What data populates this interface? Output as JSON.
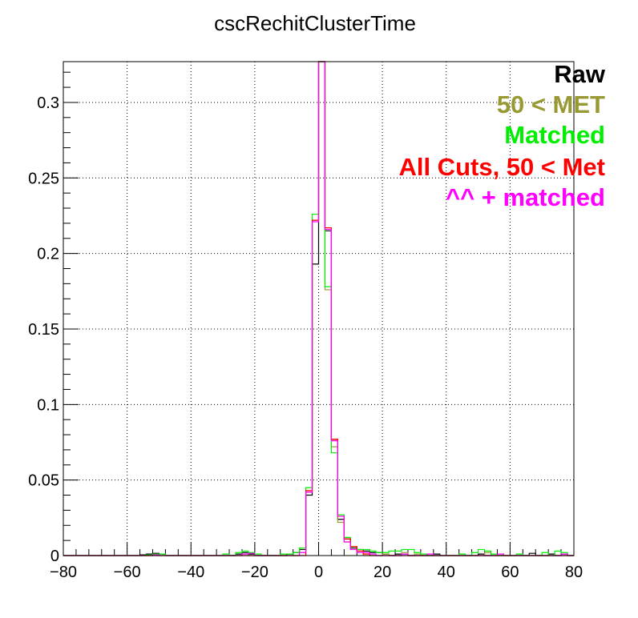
{
  "chart_data": {
    "type": "histogram",
    "title": "cscRechitClusterTime",
    "xlabel": "",
    "ylabel": "",
    "xlim": [
      -80,
      80
    ],
    "ylim": [
      0,
      0.327
    ],
    "bin_width": 2,
    "x_ticks": [
      -80,
      -60,
      -40,
      -20,
      0,
      20,
      40,
      60,
      80
    ],
    "x_tick_labels": [
      "−80",
      "−60",
      "−40",
      "−20",
      "0",
      "20",
      "40",
      "60",
      "80"
    ],
    "y_ticks": [
      0,
      0.05,
      0.1,
      0.15,
      0.2,
      0.25,
      0.3
    ],
    "y_tick_labels": [
      "0",
      "0.05",
      "0.1",
      "0.15",
      "0.2",
      "0.25",
      "0.3"
    ],
    "grid": true,
    "legend_position": "top-right",
    "series": [
      {
        "name": "Raw",
        "color": "#000000",
        "bins": [
          [
            -56,
            0.0005
          ],
          [
            -54,
            0.001
          ],
          [
            -52,
            0.0015
          ],
          [
            -50,
            0.001
          ],
          [
            -26,
            0.001
          ],
          [
            -24,
            0.002
          ],
          [
            -22,
            0.001
          ],
          [
            -10,
            0.001
          ],
          [
            -8,
            0.002
          ],
          [
            -6,
            0.004
          ],
          [
            -4,
            0.04
          ],
          [
            -2,
            0.193
          ],
          [
            0,
            0.33
          ],
          [
            2,
            0.215
          ],
          [
            4,
            0.077
          ],
          [
            6,
            0.024
          ],
          [
            8,
            0.011
          ],
          [
            10,
            0.005
          ],
          [
            12,
            0.004
          ],
          [
            14,
            0.003
          ],
          [
            16,
            0.002
          ],
          [
            18,
            0.002
          ],
          [
            20,
            0.001
          ],
          [
            24,
            0.001
          ],
          [
            26,
            0.001
          ],
          [
            36,
            0.001
          ],
          [
            50,
            0.001
          ],
          [
            66,
            0.0015
          ],
          [
            72,
            0.001
          ],
          [
            76,
            0.001
          ]
        ]
      },
      {
        "name": "50 < MET",
        "color": "#999933",
        "bins": [
          [
            -52,
            0.0005
          ],
          [
            -24,
            0.001
          ],
          [
            -6,
            0.002
          ],
          [
            -4,
            0.042
          ],
          [
            -2,
            0.222
          ],
          [
            0,
            0.33
          ],
          [
            2,
            0.176
          ],
          [
            4,
            0.072
          ],
          [
            6,
            0.022
          ],
          [
            8,
            0.009
          ],
          [
            10,
            0.004
          ],
          [
            12,
            0.003
          ],
          [
            20,
            0.001
          ],
          [
            26,
            0.002
          ],
          [
            30,
            0.001
          ],
          [
            52,
            0.002
          ]
        ]
      },
      {
        "name": "Matched",
        "color": "#00ee00",
        "bins": [
          [
            -54,
            0.0005
          ],
          [
            -52,
            0.001
          ],
          [
            -50,
            0.001
          ],
          [
            -30,
            0.001
          ],
          [
            -26,
            0.002
          ],
          [
            -24,
            0.003
          ],
          [
            -22,
            0.002
          ],
          [
            -20,
            0.001
          ],
          [
            -12,
            0.001
          ],
          [
            -10,
            0.001
          ],
          [
            -8,
            0.002
          ],
          [
            -6,
            0.005
          ],
          [
            -4,
            0.045
          ],
          [
            -2,
            0.226
          ],
          [
            0,
            0.33
          ],
          [
            2,
            0.178
          ],
          [
            4,
            0.068
          ],
          [
            6,
            0.027
          ],
          [
            8,
            0.012
          ],
          [
            10,
            0.006
          ],
          [
            12,
            0.004
          ],
          [
            14,
            0.004
          ],
          [
            16,
            0.003
          ],
          [
            18,
            0.002
          ],
          [
            20,
            0.002
          ],
          [
            22,
            0.003
          ],
          [
            24,
            0.003
          ],
          [
            26,
            0.004
          ],
          [
            28,
            0.004
          ],
          [
            30,
            0.002
          ],
          [
            32,
            0.001
          ],
          [
            44,
            0.001
          ],
          [
            48,
            0.002
          ],
          [
            50,
            0.004
          ],
          [
            52,
            0.003
          ],
          [
            54,
            0.001
          ],
          [
            62,
            0.001
          ],
          [
            70,
            0.002
          ],
          [
            74,
            0.003
          ],
          [
            76,
            0.002
          ]
        ]
      },
      {
        "name": "All Cuts, 50 < Met",
        "color": "#ff0000",
        "bins": [
          [
            -4,
            0.043
          ],
          [
            -2,
            0.222
          ],
          [
            0,
            0.33
          ],
          [
            2,
            0.217
          ],
          [
            4,
            0.077
          ],
          [
            6,
            0.026
          ],
          [
            8,
            0.011
          ],
          [
            10,
            0.006
          ],
          [
            12,
            0.003
          ],
          [
            14,
            0.001
          ]
        ]
      },
      {
        "name": "^^ + matched",
        "color": "#ff00ff",
        "bins": [
          [
            -52,
            0.0005
          ],
          [
            -24,
            0.001
          ],
          [
            -22,
            0.0015
          ],
          [
            -6,
            0.002
          ],
          [
            -4,
            0.042
          ],
          [
            -2,
            0.221
          ],
          [
            0,
            0.33
          ],
          [
            2,
            0.216
          ],
          [
            4,
            0.076
          ],
          [
            6,
            0.026
          ],
          [
            8,
            0.009
          ],
          [
            10,
            0.004
          ],
          [
            12,
            0.002
          ],
          [
            14,
            0.002
          ],
          [
            16,
            0.001
          ],
          [
            26,
            0.001
          ],
          [
            34,
            0.001
          ],
          [
            56,
            0.001
          ],
          [
            76,
            0.001
          ]
        ]
      }
    ]
  }
}
